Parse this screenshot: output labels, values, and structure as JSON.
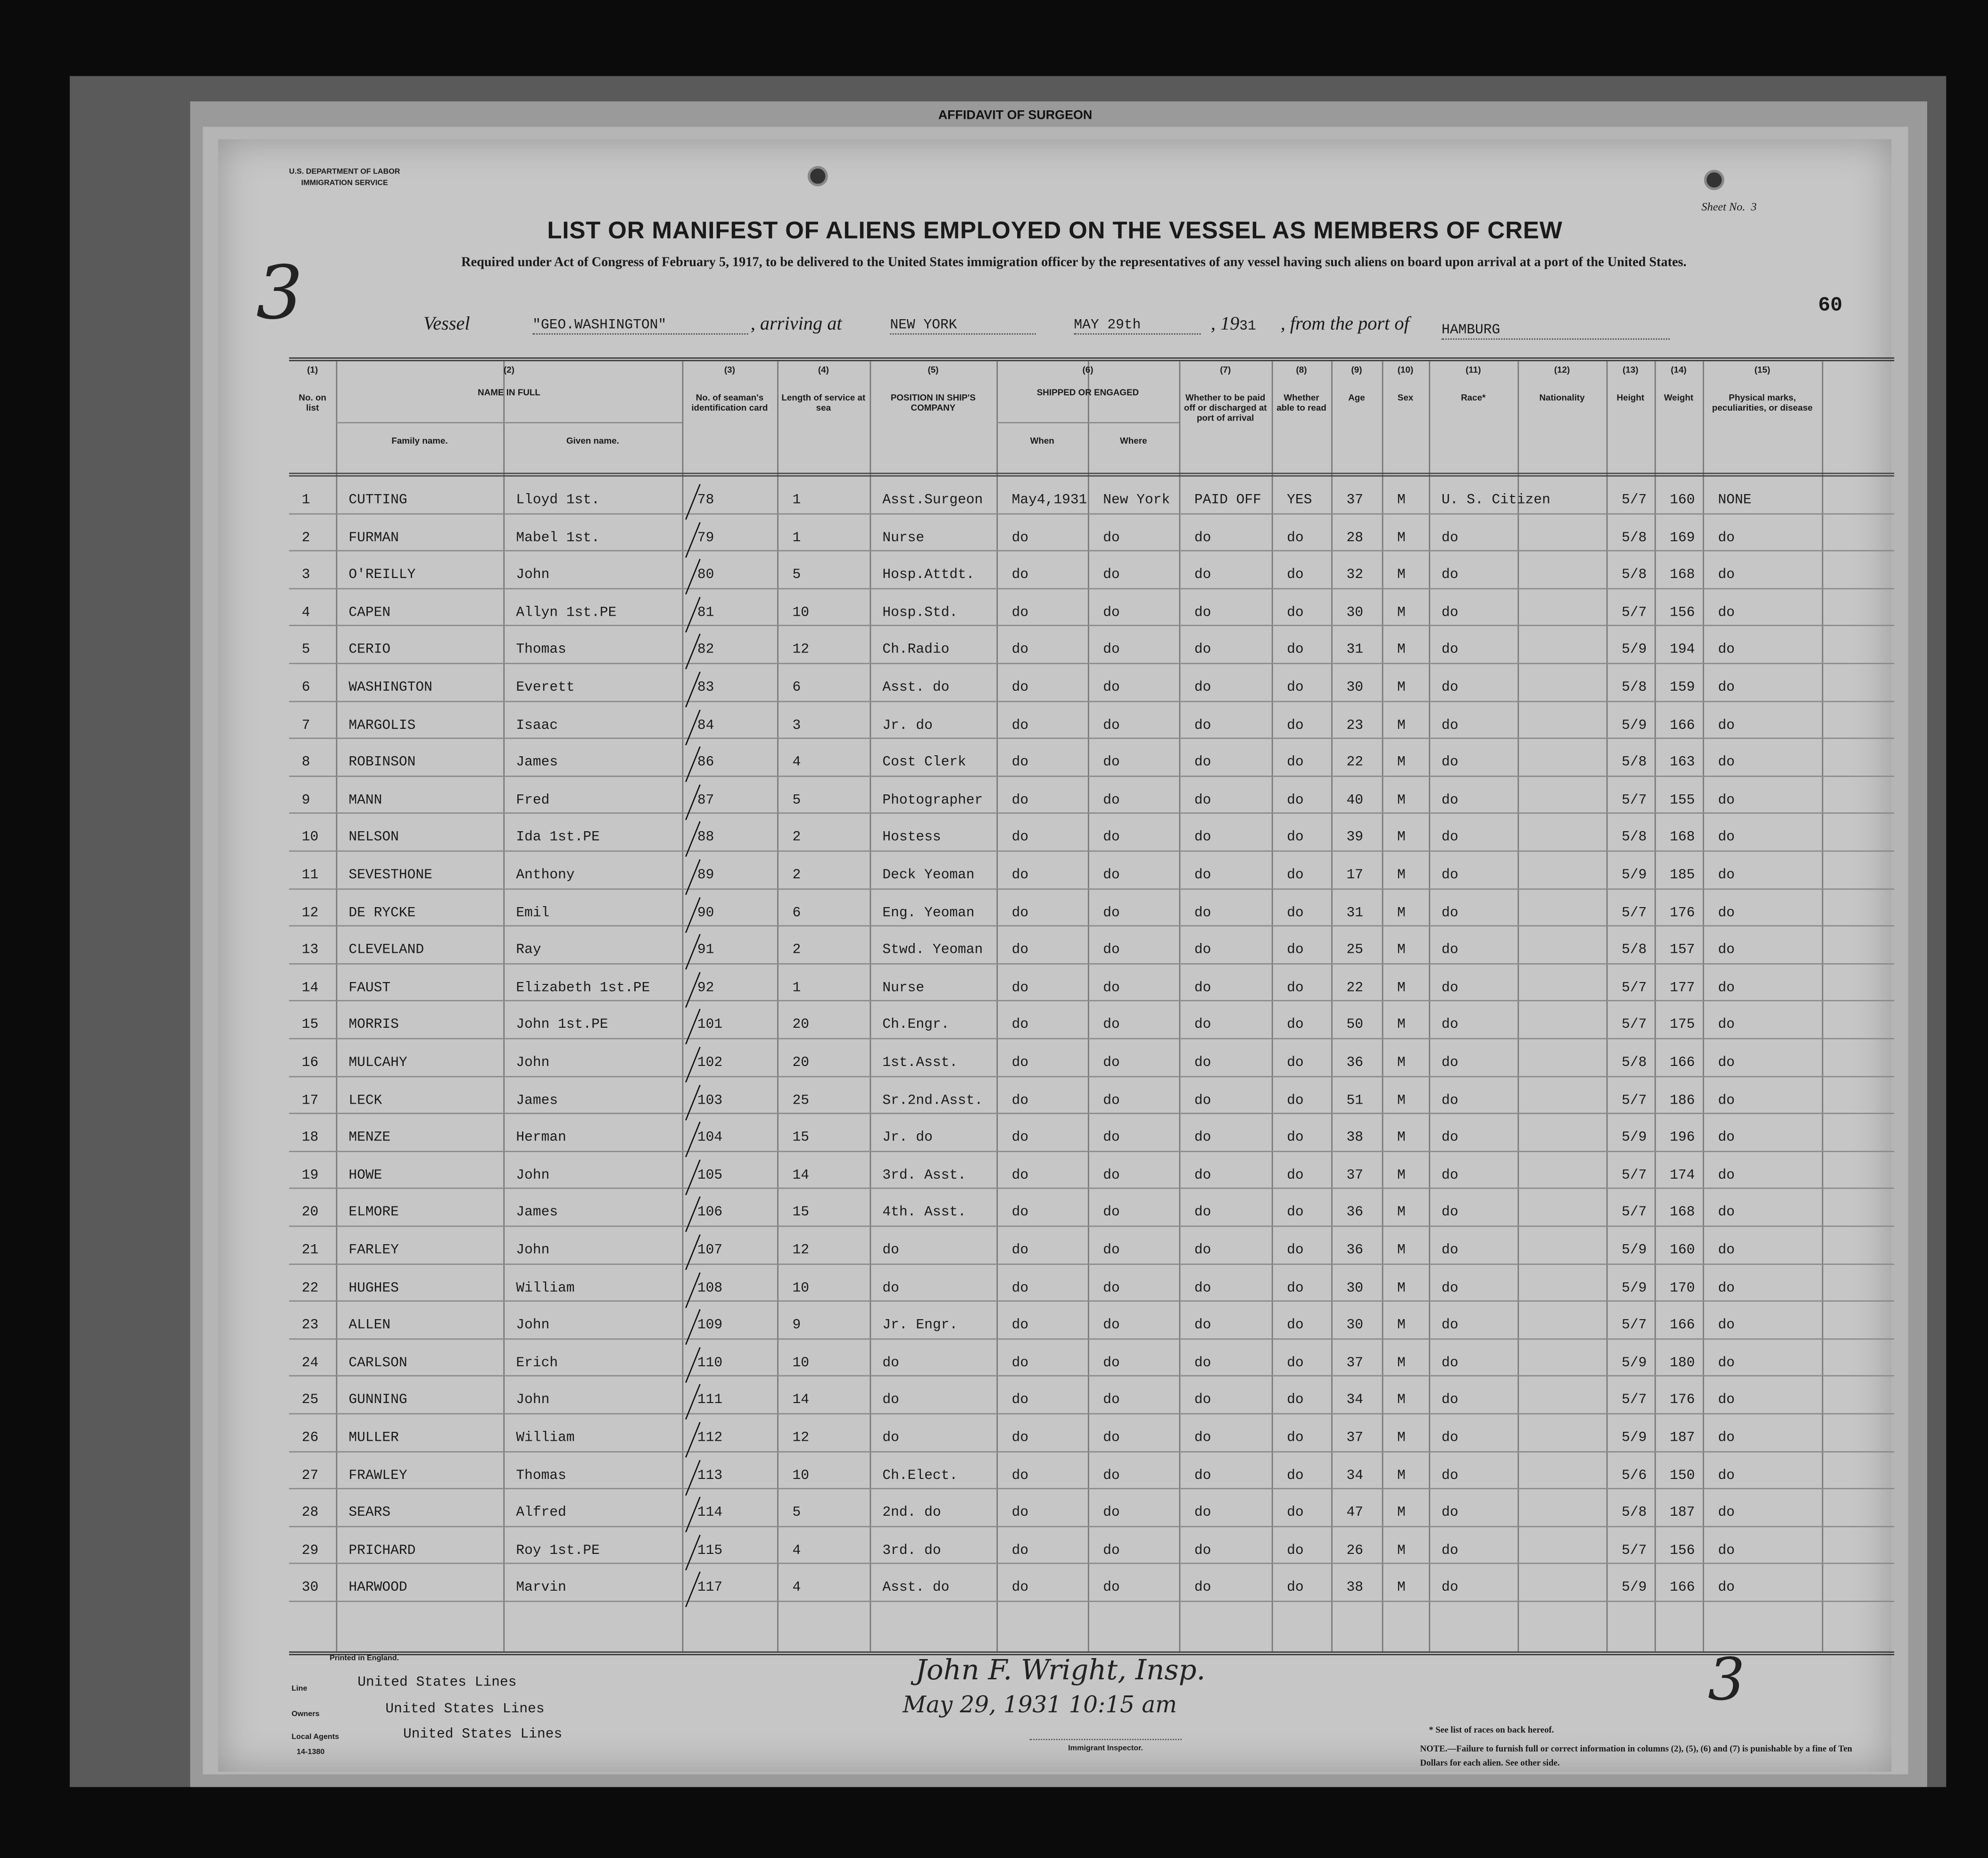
{
  "behind_page": {
    "title": "AFFIDAVIT OF SURGEON"
  },
  "form": {
    "dept_line1": "U.S. DEPARTMENT OF LABOR",
    "dept_line2": "IMMIGRATION SERVICE",
    "title": "LIST OR MANIFEST OF ALIENS EMPLOYED ON THE VESSEL AS MEMBERS OF CREW",
    "subtitle": "Required under Act of Congress of February 5, 1917, to be delivered to the United States immigration officer by the representatives of any vessel having such aliens on board upon arrival at a port of the United States.",
    "sheet_label": "Sheet No.",
    "sheet_no": "3",
    "page_mark": "3",
    "stamp_number": "60",
    "vessel_label": "Vessel",
    "vessel": "\"GEO.WASHINGTON\"",
    "arriving_label": ", arriving at",
    "arriving_at": "NEW YORK",
    "date": "MAY 29th",
    "year_prefix": ", 19",
    "year_suffix": "31",
    "from_label": ", from the port of",
    "from_port": "HAMBURG"
  },
  "columns": [
    {
      "num": "(1)",
      "label": "No. on list"
    },
    {
      "num": "(2)",
      "label": "NAME IN FULL",
      "sub": [
        "Family name.",
        "Given name."
      ]
    },
    {
      "num": "(3)",
      "label": "No. of seaman's identification card"
    },
    {
      "num": "(4)",
      "label": "Length of service at sea"
    },
    {
      "num": "(5)",
      "label": "POSITION IN SHIP'S COMPANY"
    },
    {
      "num": "(6)",
      "label": "SHIPPED OR ENGAGED",
      "sub": [
        "When",
        "Where"
      ]
    },
    {
      "num": "(7)",
      "label": "Whether to be paid off or discharged at port of arrival"
    },
    {
      "num": "(8)",
      "label": "Whether able to read"
    },
    {
      "num": "(9)",
      "label": "Age"
    },
    {
      "num": "(10)",
      "label": "Sex"
    },
    {
      "num": "(11)",
      "label": "Race*"
    },
    {
      "num": "(12)",
      "label": "Nationality"
    },
    {
      "num": "(13)",
      "label": "Height"
    },
    {
      "num": "(14)",
      "label": "Weight"
    },
    {
      "num": "(15)",
      "label": "Physical marks, peculiarities, or disease"
    }
  ],
  "rows": [
    [
      "1",
      "CUTTING",
      "Lloyd   1st.",
      "78",
      "1",
      "Asst.Surgeon",
      "May4,1931",
      "New York",
      "PAID OFF",
      "YES",
      "37",
      "M",
      "U. S. Citizen",
      "",
      "5/7",
      "160",
      "NONE"
    ],
    [
      "2",
      "FURMAN",
      "Mabel  1st.",
      "79",
      "1",
      "Nurse",
      "do",
      "do",
      "do",
      "do",
      "28",
      "M",
      "do",
      "",
      "5/8",
      "169",
      "do"
    ],
    [
      "3",
      "O'REILLY",
      "John",
      "80",
      "5",
      "Hosp.Attdt.",
      "do",
      "do",
      "do",
      "do",
      "32",
      "M",
      "do",
      "",
      "5/8",
      "168",
      "do"
    ],
    [
      "4",
      "CAPEN",
      "Allyn   1st.PE",
      "81",
      "10",
      "Hosp.Std.",
      "do",
      "do",
      "do",
      "do",
      "30",
      "M",
      "do",
      "",
      "5/7",
      "156",
      "do"
    ],
    [
      "5",
      "CERIO",
      "Thomas",
      "82",
      "12",
      "Ch.Radio",
      "do",
      "do",
      "do",
      "do",
      "31",
      "M",
      "do",
      "",
      "5/9",
      "194",
      "do"
    ],
    [
      "6",
      "WASHINGTON",
      "Everett",
      "83",
      "6",
      "Asst. do",
      "do",
      "do",
      "do",
      "do",
      "30",
      "M",
      "do",
      "",
      "5/8",
      "159",
      "do"
    ],
    [
      "7",
      "MARGOLIS",
      "Isaac",
      "84",
      "3",
      "Jr.  do",
      "do",
      "do",
      "do",
      "do",
      "23",
      "M",
      "do",
      "",
      "5/9",
      "166",
      "do"
    ],
    [
      "8",
      "ROBINSON",
      "James",
      "86",
      "4",
      "Cost Clerk",
      "do",
      "do",
      "do",
      "do",
      "22",
      "M",
      "do",
      "",
      "5/8",
      "163",
      "do"
    ],
    [
      "9",
      "MANN",
      "Fred",
      "87",
      "5",
      "Photographer",
      "do",
      "do",
      "do",
      "do",
      "40",
      "M",
      "do",
      "",
      "5/7",
      "155",
      "do"
    ],
    [
      "10",
      "NELSON",
      "Ida     1st.PE",
      "88",
      "2",
      "Hostess",
      "do",
      "do",
      "do",
      "do",
      "39",
      "M",
      "do",
      "",
      "5/8",
      "168",
      "do"
    ],
    [
      "11",
      "SEVESTHONE",
      "Anthony",
      "89",
      "2",
      "Deck Yeoman",
      "do",
      "do",
      "do",
      "do",
      "17",
      "M",
      "do",
      "",
      "5/9",
      "185",
      "do"
    ],
    [
      "12",
      "DE RYCKE",
      "Emil",
      "90",
      "6",
      "Eng. Yeoman",
      "do",
      "do",
      "do",
      "do",
      "31",
      "M",
      "do",
      "",
      "5/7",
      "176",
      "do"
    ],
    [
      "13",
      "CLEVELAND",
      "Ray",
      "91",
      "2",
      "Stwd. Yeoman",
      "do",
      "do",
      "do",
      "do",
      "25",
      "M",
      "do",
      "",
      "5/8",
      "157",
      "do"
    ],
    [
      "14",
      "FAUST",
      "Elizabeth 1st.PE",
      "92",
      "1",
      "Nurse",
      "do",
      "do",
      "do",
      "do",
      "22",
      "M",
      "do",
      "",
      "5/7",
      "177",
      "do"
    ],
    [
      "15",
      "MORRIS",
      "John    1st.PE",
      "101",
      "20",
      "Ch.Engr.",
      "do",
      "do",
      "do",
      "do",
      "50",
      "M",
      "do",
      "",
      "5/7",
      "175",
      "do"
    ],
    [
      "16",
      "MULCAHY",
      "John",
      "102",
      "20",
      "1st.Asst.",
      "do",
      "do",
      "do",
      "do",
      "36",
      "M",
      "do",
      "",
      "5/8",
      "166",
      "do"
    ],
    [
      "17",
      "LECK",
      "James",
      "103",
      "25",
      "Sr.2nd.Asst.",
      "do",
      "do",
      "do",
      "do",
      "51",
      "M",
      "do",
      "",
      "5/7",
      "186",
      "do"
    ],
    [
      "18",
      "MENZE",
      "Herman",
      "104",
      "15",
      "Jr.  do",
      "do",
      "do",
      "do",
      "do",
      "38",
      "M",
      "do",
      "",
      "5/9",
      "196",
      "do"
    ],
    [
      "19",
      "HOWE",
      "John",
      "105",
      "14",
      "3rd. Asst.",
      "do",
      "do",
      "do",
      "do",
      "37",
      "M",
      "do",
      "",
      "5/7",
      "174",
      "do"
    ],
    [
      "20",
      "ELMORE",
      "James",
      "106",
      "15",
      "4th. Asst.",
      "do",
      "do",
      "do",
      "do",
      "36",
      "M",
      "do",
      "",
      "5/7",
      "168",
      "do"
    ],
    [
      "21",
      "FARLEY",
      "John",
      "107",
      "12",
      "do",
      "do",
      "do",
      "do",
      "do",
      "36",
      "M",
      "do",
      "",
      "5/9",
      "160",
      "do"
    ],
    [
      "22",
      "HUGHES",
      "William",
      "108",
      "10",
      "do",
      "do",
      "do",
      "do",
      "do",
      "30",
      "M",
      "do",
      "",
      "5/9",
      "170",
      "do"
    ],
    [
      "23",
      "ALLEN",
      "John",
      "109",
      "9",
      "Jr. Engr.",
      "do",
      "do",
      "do",
      "do",
      "30",
      "M",
      "do",
      "",
      "5/7",
      "166",
      "do"
    ],
    [
      "24",
      "CARLSON",
      "Erich",
      "110",
      "10",
      "do",
      "do",
      "do",
      "do",
      "do",
      "37",
      "M",
      "do",
      "",
      "5/9",
      "180",
      "do"
    ],
    [
      "25",
      "GUNNING",
      "John",
      "111",
      "14",
      "do",
      "do",
      "do",
      "do",
      "do",
      "34",
      "M",
      "do",
      "",
      "5/7",
      "176",
      "do"
    ],
    [
      "26",
      "MULLER",
      "William",
      "112",
      "12",
      "do",
      "do",
      "do",
      "do",
      "do",
      "37",
      "M",
      "do",
      "",
      "5/9",
      "187",
      "do"
    ],
    [
      "27",
      "FRAWLEY",
      "Thomas",
      "113",
      "10",
      "Ch.Elect.",
      "do",
      "do",
      "do",
      "do",
      "34",
      "M",
      "do",
      "",
      "5/6",
      "150",
      "do"
    ],
    [
      "28",
      "SEARS",
      "Alfred",
      "114",
      "5",
      "2nd. do",
      "do",
      "do",
      "do",
      "do",
      "47",
      "M",
      "do",
      "",
      "5/8",
      "187",
      "do"
    ],
    [
      "29",
      "PRICHARD",
      "Roy     1st.PE",
      "115",
      "4",
      "3rd. do",
      "do",
      "do",
      "do",
      "do",
      "26",
      "M",
      "do",
      "",
      "5/7",
      "156",
      "do"
    ],
    [
      "30",
      "HARWOOD",
      "Marvin",
      "117",
      "4",
      "Asst. do",
      "do",
      "do",
      "do",
      "do",
      "38",
      "M",
      "do",
      "",
      "5/9",
      "166",
      "do"
    ]
  ],
  "signature": {
    "name": "John F. Wright, Insp.",
    "date": "May 29, 1931  10:15 am",
    "caption": "Immigrant Inspector."
  },
  "footer": {
    "printed": "Printed in England.",
    "line_label": "Line",
    "line": "United States Lines",
    "owners_label": "Owners",
    "owners": "United States Lines",
    "agents_label": "Local Agents",
    "agents": "United States Lines",
    "form_code": "14-1380",
    "page_mark": "3",
    "races_note": "* See list of races on back hereof.",
    "note": "NOTE.—Failure to furnish full or correct information in columns (2), (5), (6) and (7) is punishable by a fine of Ten Dollars for each alien. See other side."
  }
}
